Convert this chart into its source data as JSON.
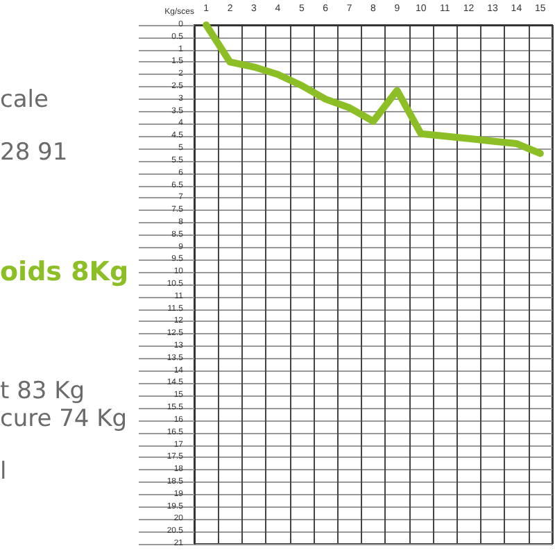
{
  "chart_data": {
    "type": "line",
    "ylabel": "Kg/sces",
    "categories": [
      "1",
      "2",
      "3",
      "4",
      "5",
      "6",
      "7",
      "8",
      "9",
      "10",
      "11",
      "12",
      "13",
      "14",
      "15"
    ],
    "series": [
      {
        "color": "#8cbf26",
        "values": [
          0,
          1.5,
          1.7,
          2,
          2.45,
          3,
          3.35,
          3.9,
          2.65,
          4.4,
          4.5,
          4.6,
          4.7,
          4.8,
          5.2
        ]
      }
    ],
    "ylim": [
      21,
      0
    ],
    "yticks": [
      0,
      0.5,
      1,
      1.5,
      2,
      2.5,
      3,
      3.5,
      4,
      4.5,
      5,
      5.5,
      6,
      6.5,
      7,
      7.5,
      8,
      8.5,
      9,
      9.5,
      10,
      10.5,
      11,
      11.5,
      12,
      12.5,
      13,
      13.5,
      14,
      14.5,
      15,
      15.5,
      16,
      16.5,
      17,
      17.5,
      18,
      18.5,
      19,
      19.5,
      20,
      20.5,
      21
    ],
    "grid": true,
    "marker": "none",
    "line_style": "solid",
    "annotations": [
      "cale",
      "28 91",
      "oids 8Kg",
      "t 83 Kg",
      "cure 74 Kg",
      "l"
    ]
  }
}
